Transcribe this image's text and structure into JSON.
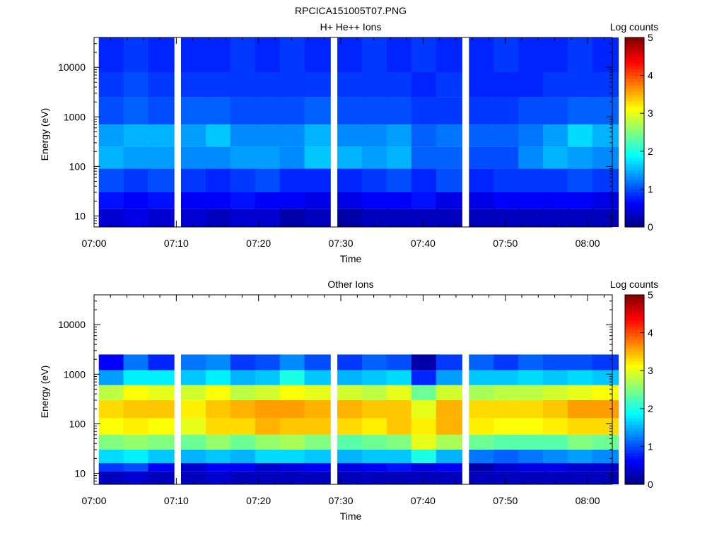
{
  "figure_title": "RPCICA151005T07.PNG",
  "chart_data": [
    {
      "type": "heatmap",
      "title": "H+ He++ Ions",
      "xlabel": "Time",
      "ylabel": "Energy (eV)",
      "y_scale": "log",
      "x_range": [
        "07:00",
        "08:03"
      ],
      "y_range": [
        6,
        40000
      ],
      "x_ticks": [
        "07:00",
        "07:10",
        "07:20",
        "07:30",
        "07:40",
        "07:50",
        "08:00"
      ],
      "y_ticks": [
        "10",
        "100",
        "1000",
        "10000"
      ],
      "colorbar": {
        "label": "Log counts",
        "range": [
          0,
          5
        ],
        "ticks": [
          "0",
          "1",
          "2",
          "3",
          "4",
          "5"
        ],
        "colormap": "jet"
      },
      "time_bins": [
        "07:02",
        "07:05",
        "07:08",
        "07:12",
        "07:15",
        "07:18",
        "07:21",
        "07:24",
        "07:27",
        "07:31",
        "07:34",
        "07:37",
        "07:40",
        "07:43",
        "07:47",
        "07:50",
        "07:53",
        "07:56",
        "07:59",
        "08:02"
      ],
      "bands": [
        {
          "energy": [
            8000,
            40000
          ],
          "values": [
            0.8,
            0.9,
            0.8,
            0.8,
            0.8,
            0.9,
            0.8,
            0.9,
            0.8,
            0.8,
            0.9,
            0.8,
            0.9,
            0.8,
            0.8,
            0.9,
            0.8,
            0.8,
            0.9,
            0.8
          ]
        },
        {
          "energy": [
            2500,
            8000
          ],
          "values": [
            0.9,
            1.0,
            0.9,
            0.9,
            0.9,
            0.9,
            0.9,
            0.9,
            0.9,
            0.9,
            0.9,
            0.9,
            0.8,
            0.9,
            0.8,
            0.8,
            0.8,
            0.9,
            0.9,
            0.9
          ]
        },
        {
          "energy": [
            700,
            2500
          ],
          "values": [
            1.0,
            1.1,
            1.0,
            1.1,
            1.1,
            1.0,
            1.0,
            1.0,
            1.1,
            1.0,
            1.0,
            1.0,
            0.9,
            0.9,
            0.9,
            0.9,
            1.0,
            1.0,
            1.1,
            1.1
          ]
        },
        {
          "energy": [
            250,
            700
          ],
          "values": [
            1.4,
            1.5,
            1.5,
            1.4,
            1.6,
            1.3,
            1.3,
            1.3,
            1.5,
            1.3,
            1.3,
            1.4,
            1.1,
            1.2,
            1.1,
            1.1,
            1.2,
            1.4,
            1.7,
            1.5
          ]
        },
        {
          "energy": [
            90,
            250
          ],
          "values": [
            1.5,
            1.4,
            1.4,
            1.3,
            1.3,
            1.4,
            1.4,
            1.3,
            1.6,
            1.5,
            1.4,
            1.5,
            1.1,
            1.1,
            1.0,
            1.0,
            1.3,
            1.5,
            1.4,
            1.3
          ]
        },
        {
          "energy": [
            30,
            90
          ],
          "values": [
            1.0,
            0.9,
            1.0,
            0.9,
            0.8,
            0.9,
            1.0,
            0.8,
            0.8,
            0.8,
            0.9,
            1.0,
            0.8,
            1.0,
            0.8,
            0.9,
            0.9,
            0.9,
            1.0,
            0.9
          ]
        },
        {
          "energy": [
            14,
            30
          ],
          "values": [
            0.7,
            0.6,
            0.7,
            0.6,
            0.6,
            0.7,
            0.6,
            0.6,
            0.5,
            0.5,
            0.6,
            0.6,
            0.7,
            0.5,
            0.5,
            0.6,
            0.6,
            0.6,
            0.6,
            0.5
          ]
        },
        {
          "energy": [
            6,
            14
          ],
          "values": [
            0.4,
            0.5,
            0.4,
            0.4,
            0.3,
            0.4,
            0.4,
            0.2,
            0.3,
            0.2,
            0.3,
            0.3,
            0.3,
            0.3,
            0.3,
            0.3,
            0.3,
            0.3,
            0.3,
            0.3
          ]
        }
      ]
    },
    {
      "type": "heatmap",
      "title": "Other Ions",
      "xlabel": "Time",
      "ylabel": "Energy (eV)",
      "y_scale": "log",
      "x_range": [
        "07:00",
        "08:03"
      ],
      "y_range": [
        6,
        40000
      ],
      "x_ticks": [
        "07:00",
        "07:10",
        "07:20",
        "07:30",
        "07:40",
        "07:50",
        "08:00"
      ],
      "y_ticks": [
        "10",
        "100",
        "1000",
        "10000"
      ],
      "colorbar": {
        "label": "Log counts",
        "range": [
          0,
          5
        ],
        "ticks": [
          "0",
          "1",
          "2",
          "3",
          "4",
          "5"
        ],
        "colormap": "jet"
      },
      "time_bins": [
        "07:02",
        "07:05",
        "07:08",
        "07:12",
        "07:15",
        "07:18",
        "07:21",
        "07:24",
        "07:27",
        "07:31",
        "07:34",
        "07:37",
        "07:40",
        "07:43",
        "07:47",
        "07:50",
        "07:53",
        "07:56",
        "07:59",
        "08:02"
      ],
      "bands": [
        {
          "energy": [
            1200,
            2500
          ],
          "values": [
            0.6,
            1.2,
            0.8,
            1.2,
            1.3,
            0.9,
            1.0,
            1.3,
            1.0,
            0.9,
            1.1,
            1.0,
            0.2,
            0.9,
            1.1,
            0.9,
            1.1,
            1.0,
            1.0,
            0.9
          ]
        },
        {
          "energy": [
            600,
            1200
          ],
          "values": [
            1.4,
            1.8,
            1.8,
            1.6,
            1.8,
            1.5,
            1.6,
            2.0,
            1.6,
            1.5,
            1.6,
            1.7,
            0.8,
            1.4,
            1.6,
            1.6,
            1.7,
            1.6,
            1.7,
            1.6
          ]
        },
        {
          "energy": [
            300,
            600
          ],
          "values": [
            2.8,
            3.1,
            3.0,
            2.9,
            3.1,
            2.8,
            2.9,
            3.1,
            3.0,
            2.9,
            2.8,
            3.0,
            2.4,
            2.9,
            2.7,
            2.8,
            2.8,
            2.9,
            3.0,
            3.1
          ]
        },
        {
          "energy": [
            130,
            300
          ],
          "values": [
            3.3,
            3.4,
            3.4,
            3.2,
            3.4,
            3.5,
            3.6,
            3.6,
            3.5,
            3.5,
            3.4,
            3.4,
            3.0,
            3.5,
            3.3,
            3.3,
            3.3,
            3.4,
            3.6,
            3.6
          ]
        },
        {
          "energy": [
            60,
            130
          ],
          "values": [
            3.1,
            3.2,
            3.1,
            3.0,
            3.3,
            3.3,
            3.5,
            3.4,
            3.4,
            3.3,
            3.2,
            3.4,
            3.2,
            3.5,
            3.2,
            3.1,
            3.1,
            3.2,
            3.3,
            3.3
          ]
        },
        {
          "energy": [
            30,
            60
          ],
          "values": [
            2.5,
            2.6,
            2.5,
            2.4,
            2.6,
            2.4,
            2.6,
            2.7,
            2.5,
            2.3,
            2.4,
            2.5,
            3.0,
            2.7,
            2.4,
            2.3,
            2.3,
            2.3,
            2.5,
            2.4
          ]
        },
        {
          "energy": [
            16,
            30
          ],
          "values": [
            1.7,
            1.8,
            1.6,
            1.5,
            1.6,
            1.5,
            1.7,
            1.7,
            1.6,
            1.5,
            1.6,
            1.6,
            2.0,
            1.5,
            1.2,
            1.1,
            1.2,
            1.3,
            1.4,
            1.3
          ]
        },
        {
          "energy": [
            11,
            16
          ],
          "values": [
            0.9,
            1.0,
            0.6,
            0.4,
            0.6,
            0.6,
            0.4,
            0.5,
            0.6,
            0.5,
            0.6,
            0.7,
            0.5,
            0.6,
            0.2,
            0.4,
            0.5,
            0.5,
            0.4,
            0.4
          ]
        },
        {
          "energy": [
            6,
            11
          ],
          "values": [
            0.3,
            0.4,
            0.3,
            0.3,
            0.4,
            0.3,
            0.3,
            0.3,
            0.3,
            0.3,
            0.3,
            0.3,
            0.3,
            0.3,
            0.3,
            0.3,
            0.3,
            0.3,
            0.3,
            0.3
          ]
        }
      ]
    }
  ]
}
